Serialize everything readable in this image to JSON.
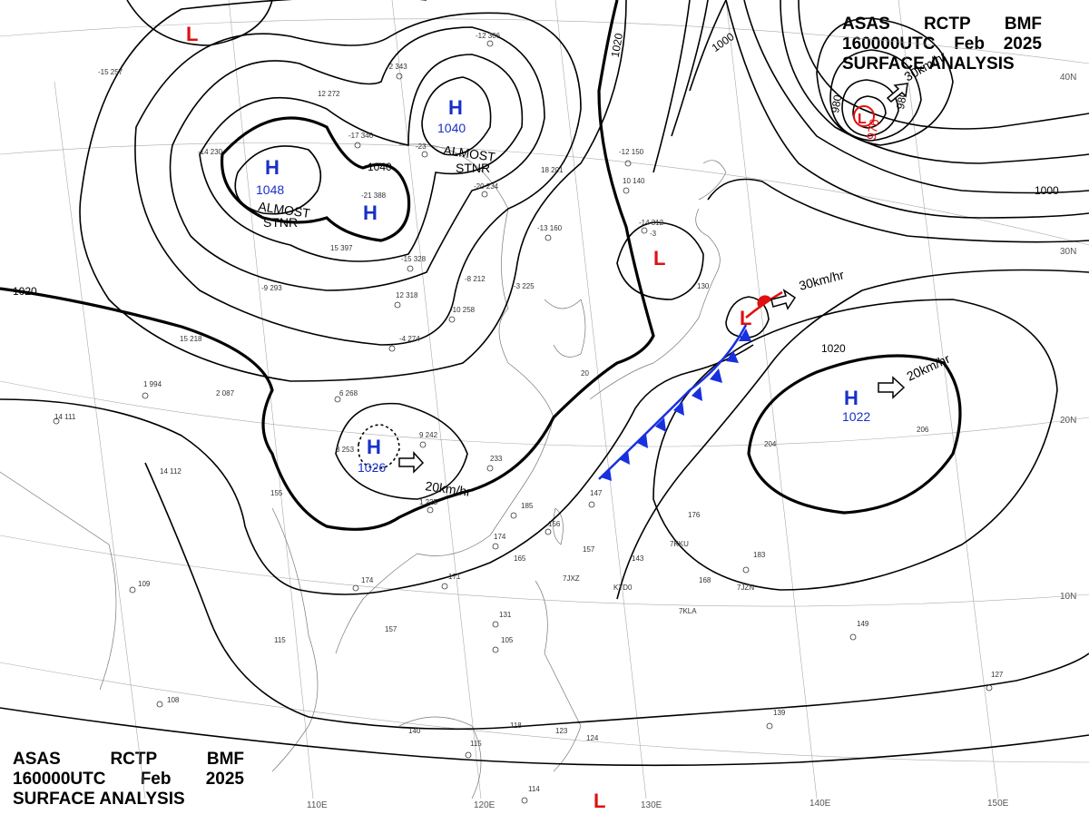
{
  "header": {
    "line1": [
      "ASAS",
      "RCTP",
      "BMF"
    ],
    "line2": [
      "160000UTC",
      "Feb",
      "2025"
    ],
    "line3": "SURFACE ANALYSIS"
  },
  "colors": {
    "high": "#1830c8",
    "low": "#e01010",
    "cold_front": "#1830e0",
    "warm_front": "#e01010",
    "isobar": "#000000"
  },
  "highs": [
    {
      "label": "H",
      "value": "1048"
    },
    {
      "label": "H",
      "value": "1040"
    },
    {
      "label": "H",
      "value": ""
    },
    {
      "label": "H",
      "value": "1026"
    },
    {
      "label": "H",
      "value": "1022"
    }
  ],
  "lows": [
    {
      "label": "L",
      "value": ""
    },
    {
      "label": "L",
      "value": "976"
    },
    {
      "label": "L",
      "value": ""
    },
    {
      "label": "L",
      "value": ""
    },
    {
      "label": "L",
      "value": ""
    }
  ],
  "notes": {
    "almost_stnr_1": "ALMOST",
    "almost_stnr_1b": "STNR",
    "almost_stnr_2": "ALMOST",
    "almost_stnr_2b": "STNR"
  },
  "motion": [
    "20km/hr",
    "30km/hr",
    "20km/hr",
    "30km/hr"
  ],
  "isobar_labels": [
    "1040",
    "1020",
    "1020",
    "1020",
    "1000",
    "1000",
    "980",
    "980"
  ],
  "longitudes": [
    "110E",
    "120E",
    "130E",
    "140E",
    "150E"
  ],
  "latitudes": [
    "40N",
    "30N",
    "20N",
    "10N"
  ],
  "stations": [
    "-15 257",
    "-12 306",
    "-2 343",
    "12 272",
    "-17 346",
    "-23",
    "-14 230",
    "18 201",
    "-12 150",
    "10 140",
    "-21 388",
    "-20 234",
    "-13 160",
    "-15 328",
    "15 397",
    "-9 293",
    "-8 212",
    "-3 225",
    "12 318",
    "-10 258",
    "-4 274",
    "15 218",
    "1 994",
    "2 087",
    "6 268",
    "14 111",
    "3 253",
    "9 242",
    "233",
    "1 225",
    "155",
    "147",
    "14 112",
    "185",
    "156",
    "174",
    "165",
    "171",
    "174",
    "157",
    "115",
    "109",
    "108",
    "140",
    "115",
    "131",
    "105",
    "118",
    "123",
    "124",
    "114",
    "143",
    "168",
    "176",
    "157",
    "183",
    "149",
    "127",
    "139",
    "204",
    "206",
    "-14 312",
    "-3",
    "130",
    "20"
  ],
  "ship_ids": [
    "7KKU",
    "7JXZ",
    "KTD0",
    "7KLA",
    "7JZN"
  ]
}
